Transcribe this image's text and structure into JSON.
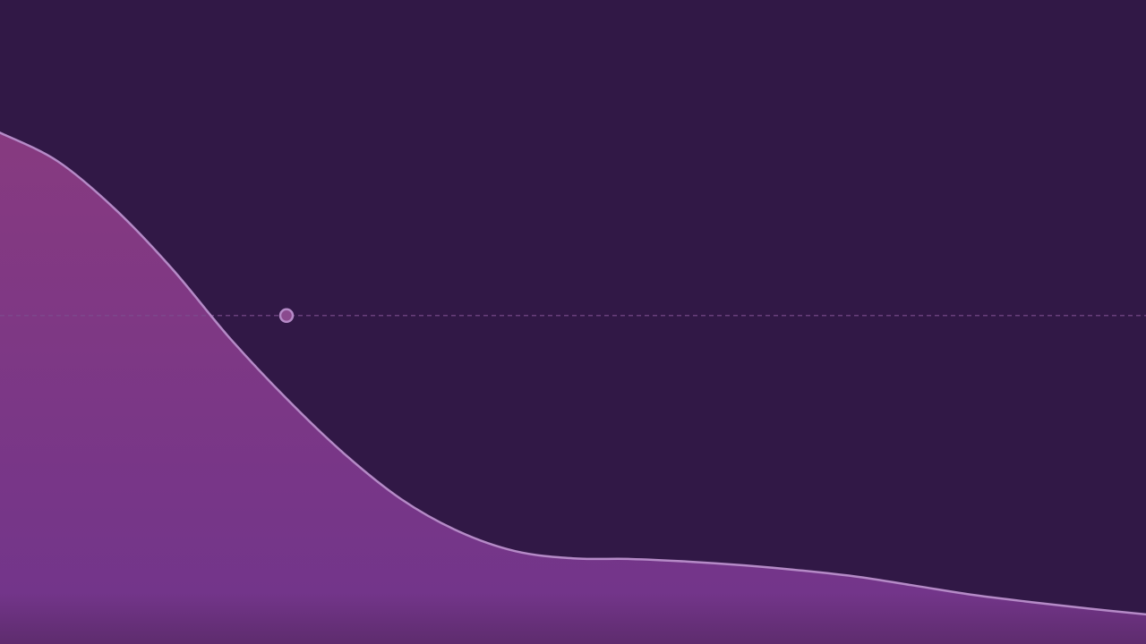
{
  "chart_data": {
    "type": "area",
    "title": "",
    "xlabel": "",
    "ylabel": "",
    "grid": false,
    "legend": "none",
    "xlim": [
      0,
      100
    ],
    "ylim": [
      0,
      100
    ],
    "series": [
      {
        "x": [
          0,
          5,
          10,
          15,
          20,
          25,
          30,
          35,
          40,
          45,
          50,
          55,
          60,
          65,
          70,
          75,
          80,
          85,
          90,
          95,
          100
        ],
        "values": [
          79.4,
          75.0,
          67.6,
          58.3,
          47.6,
          38.1,
          29.6,
          22.5,
          17.5,
          14.4,
          13.3,
          13.2,
          12.8,
          12.2,
          11.4,
          10.4,
          9.0,
          7.6,
          6.5,
          5.5,
          4.6
        ]
      }
    ],
    "reference_line": {
      "y": 51.0
    },
    "highlight_point": {
      "x": 25,
      "y": 51.0
    },
    "colors": {
      "background": "#311846",
      "fill_top": "#873A80",
      "fill_bottom": "#73358A",
      "fill_base": "#5E2C6E",
      "line": "#B58AC7",
      "reference_line": "#7C4C8E",
      "marker_stroke": "#B58AC7",
      "marker_fill": "#8A4A8E"
    }
  }
}
